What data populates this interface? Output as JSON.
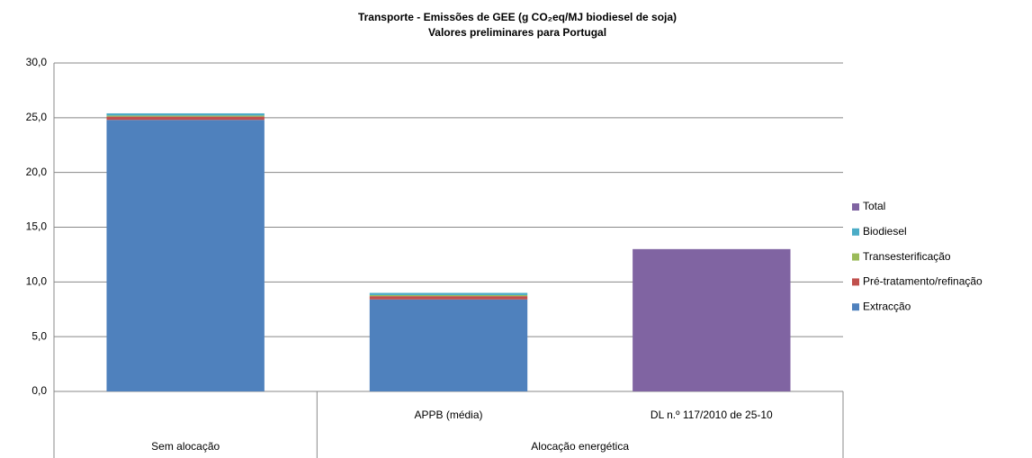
{
  "chart_data": {
    "type": "stacked_bar",
    "title": "Transporte  -  Emissões de GEE (g CO₂eq/MJ biodiesel de soja)",
    "subtitle": "Valores preliminares para Portugal",
    "categories": [
      null,
      "APPB (média)",
      "DL n.º 117/2010  de 25-10"
    ],
    "groups": [
      "Sem alocação",
      "Alocação energética",
      "Alocação energética"
    ],
    "series": [
      {
        "name": "Extracção",
        "color": "#4f81bd",
        "values": [
          24.8,
          8.4,
          null
        ]
      },
      {
        "name": "Pré-tratamento/refinação",
        "color": "#c0504d",
        "values": [
          0.3,
          0.3,
          null
        ]
      },
      {
        "name": "Transesterificação",
        "color": "#9bbb59",
        "values": [
          0.1,
          0.1,
          null
        ]
      },
      {
        "name": "Biodiesel",
        "color": "#4bacc6",
        "values": [
          0.2,
          0.2,
          null
        ]
      },
      {
        "name": "Total",
        "color": "#8064a2",
        "values": [
          null,
          null,
          13.0
        ]
      }
    ],
    "ylim": [
      0,
      30
    ],
    "yticks": [
      {
        "value": 0,
        "label": "0,0"
      },
      {
        "value": 5,
        "label": "5,0"
      },
      {
        "value": 10,
        "label": "10,0"
      },
      {
        "value": 15,
        "label": "15,0"
      },
      {
        "value": 20,
        "label": "20,0"
      },
      {
        "value": 25,
        "label": "25,0"
      },
      {
        "value": 30,
        "label": "30,0"
      }
    ],
    "grid": true,
    "legend": "right"
  }
}
